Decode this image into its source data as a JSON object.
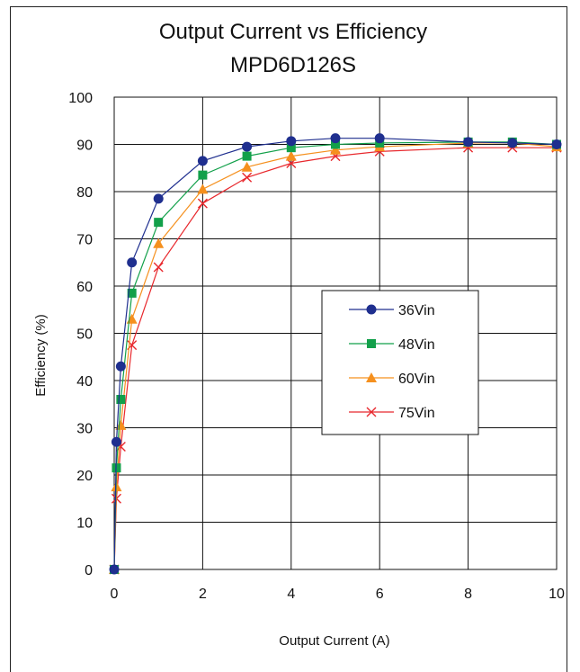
{
  "chart_data": {
    "type": "line",
    "title": "Output Current vs Efficiency",
    "subtitle": "MPD6D126S",
    "xlabel": "Output Current (A)",
    "ylabel": "Efficiency (%)",
    "xlim": [
      0,
      10
    ],
    "ylim": [
      0,
      100
    ],
    "xticks": [
      "0",
      "2",
      "4",
      "6",
      "8",
      "10"
    ],
    "yticks": [
      "0",
      "10",
      "20",
      "30",
      "40",
      "50",
      "60",
      "70",
      "80",
      "90",
      "100"
    ],
    "grid": true,
    "legend_position": "center-right",
    "series": [
      {
        "name": "36Vin",
        "color": "#1f2f8f",
        "marker": "circle",
        "x": [
          0,
          0.05,
          0.15,
          0.4,
          1,
          2,
          3,
          4,
          5,
          6,
          8,
          9,
          10
        ],
        "y": [
          0,
          27,
          43,
          65,
          78.5,
          86.5,
          89.5,
          90.7,
          91.3,
          91.3,
          90.5,
          90.3,
          90
        ]
      },
      {
        "name": "48Vin",
        "color": "#12a04a",
        "marker": "square",
        "x": [
          0,
          0.05,
          0.15,
          0.4,
          1,
          2,
          3,
          4,
          5,
          6,
          8,
          9,
          10
        ],
        "y": [
          0,
          21.5,
          36,
          58.5,
          73.5,
          83.5,
          87.5,
          89.3,
          90,
          90.3,
          90.5,
          90.5,
          90
        ]
      },
      {
        "name": "60Vin",
        "color": "#f5901e",
        "marker": "triangle",
        "x": [
          0,
          0.05,
          0.15,
          0.4,
          1,
          2,
          3,
          4,
          5,
          6,
          8,
          9,
          10
        ],
        "y": [
          0,
          17.5,
          30.5,
          53,
          69,
          80.5,
          85.2,
          87.5,
          88.8,
          89.5,
          90.3,
          90.3,
          89.5
        ]
      },
      {
        "name": "75Vin",
        "color": "#e8282d",
        "marker": "x",
        "x": [
          0,
          0.05,
          0.15,
          0.4,
          1,
          2,
          3,
          4,
          5,
          6,
          8,
          9,
          10
        ],
        "y": [
          0,
          15,
          26,
          47.5,
          64,
          77.5,
          83,
          86,
          87.5,
          88.5,
          89.3,
          89.3,
          89.3
        ]
      }
    ]
  }
}
